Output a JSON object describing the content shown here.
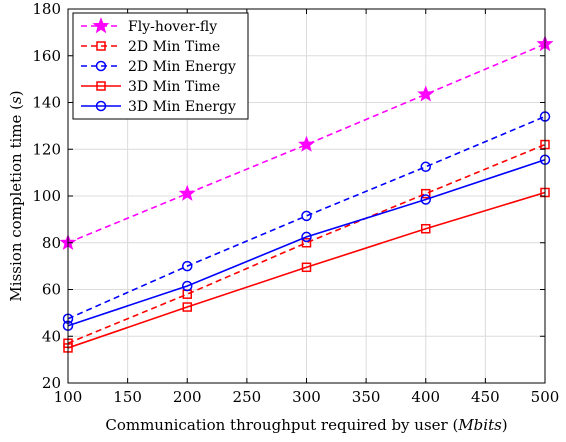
{
  "chart_data": {
    "type": "line",
    "xlabel": "Communication throughput required by user (",
    "xlabel_unit": "Mbits",
    "xlabel_close": ")",
    "ylabel": "Mission completion time (",
    "ylabel_unit": "s",
    "ylabel_close": ")",
    "xlim": [
      100,
      500
    ],
    "ylim": [
      20,
      180
    ],
    "xticks": [
      100,
      150,
      200,
      250,
      300,
      350,
      400,
      450,
      500
    ],
    "yticks": [
      20,
      40,
      60,
      80,
      100,
      120,
      140,
      160,
      180
    ],
    "grid": true,
    "legend_position": "top-left",
    "x": [
      100,
      200,
      300,
      400,
      500
    ],
    "series": [
      {
        "name": "Fly-hover-fly",
        "values": [
          80,
          101,
          122,
          143.5,
          165
        ],
        "color": "#ff00ff",
        "dash": "dashed",
        "marker": "star"
      },
      {
        "name": "2D Min Time",
        "values": [
          37,
          58,
          80,
          101,
          122
        ],
        "color": "#ff0000",
        "dash": "dashed",
        "marker": "square"
      },
      {
        "name": "2D Min Energy",
        "values": [
          47.5,
          70,
          91.5,
          112.5,
          134
        ],
        "color": "#0000ff",
        "dash": "dashed",
        "marker": "circle"
      },
      {
        "name": "3D Min Time",
        "values": [
          35,
          52.5,
          69.5,
          86,
          101.5
        ],
        "color": "#ff0000",
        "dash": "solid",
        "marker": "square"
      },
      {
        "name": "3D Min Energy",
        "values": [
          44.5,
          61.5,
          82.5,
          98.5,
          115.5
        ],
        "color": "#0000ff",
        "dash": "solid",
        "marker": "circle"
      }
    ]
  }
}
